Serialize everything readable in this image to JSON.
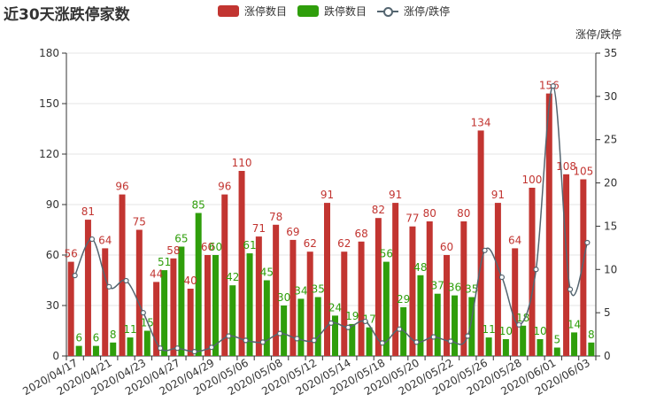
{
  "chart_data": {
    "type": "bar",
    "title": "近30天涨跌停家数",
    "y2label": "涨停/跌停",
    "ylim": [
      0,
      180
    ],
    "yticks": [
      0,
      30,
      60,
      90,
      120,
      150,
      180
    ],
    "y2lim": [
      0,
      35
    ],
    "y2ticks": [
      0,
      5,
      10,
      15,
      20,
      25,
      30,
      35
    ],
    "x_tick_labels": [
      "2020/04/17",
      "2020/04/21",
      "2020/04/23",
      "2020/04/27",
      "2020/04/29",
      "2020/05/06",
      "2020/05/08",
      "2020/05/12",
      "2020/05/14",
      "2020/05/18",
      "2020/05/20",
      "2020/05/22",
      "2020/05/26",
      "2020/05/28",
      "2020/06/01",
      "2020/06/03"
    ],
    "legend": [
      "涨停数目",
      "跌停数目",
      "涨停/跌停"
    ],
    "colors": {
      "up": "#c23531",
      "down": "#2f9e0b",
      "ratio": "#546570"
    },
    "series": [
      {
        "name": "涨停数目",
        "type": "bar",
        "values": [
          56,
          81,
          64,
          96,
          75,
          44,
          58,
          40,
          60,
          96,
          110,
          71,
          78,
          69,
          62,
          91,
          62,
          68,
          82,
          91,
          77,
          80,
          60,
          80,
          134,
          91,
          64,
          100,
          156,
          108,
          105
        ]
      },
      {
        "name": "跌停数目",
        "type": "bar",
        "values": [
          6,
          6,
          8,
          11,
          15,
          51,
          65,
          85,
          60,
          42,
          61,
          45,
          30,
          34,
          35,
          24,
          19,
          17,
          56,
          29,
          48,
          37,
          36,
          35,
          11,
          10,
          18,
          10,
          5,
          14,
          8
        ]
      },
      {
        "name": "涨停/跌停",
        "type": "line",
        "axis": "right",
        "values": [
          9.3,
          13.5,
          8.0,
          8.7,
          5.0,
          0.9,
          0.9,
          0.5,
          1.0,
          2.3,
          1.8,
          1.6,
          2.6,
          2.0,
          1.8,
          3.8,
          3.3,
          4.0,
          1.5,
          3.1,
          1.6,
          2.2,
          1.7,
          2.3,
          12.2,
          9.1,
          3.6,
          10.0,
          31.2,
          7.7,
          13.1
        ]
      }
    ]
  }
}
